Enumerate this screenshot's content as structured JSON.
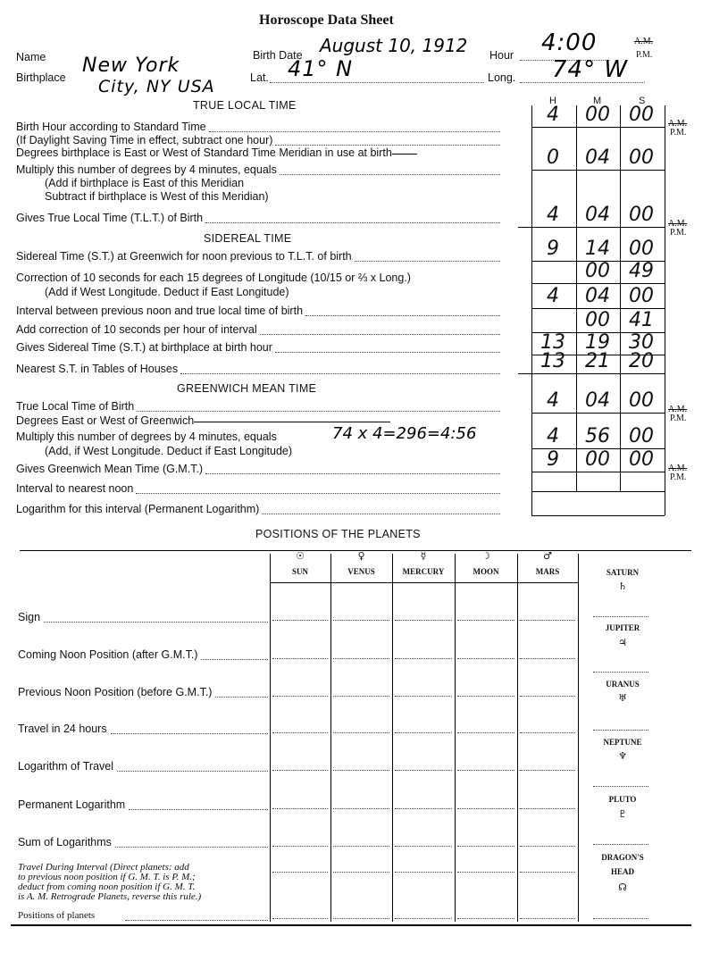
{
  "title": "Horoscope Data Sheet",
  "header": {
    "name_label": "Name",
    "name_value": "",
    "birth_date_label": "Birth Date",
    "birth_date_value": "August 10, 1912",
    "hour_label": "Hour",
    "hour_value": "4:00",
    "am": "A.M.",
    "pm": "P.M.",
    "birthplace_label": "Birthplace",
    "birthplace_line1": "New York",
    "birthplace_line2": "City, NY USA",
    "lat_label": "Lat.",
    "lat_value": "41° N",
    "long_label": "Long.",
    "long_value": "74° W"
  },
  "columns": [
    "H",
    "M",
    "S"
  ],
  "sections": {
    "true_local_time": "TRUE LOCAL TIME",
    "sidereal_time": "SIDEREAL TIME",
    "greenwich_mean_time": "GREENWICH MEAN TIME",
    "planets": "POSITIONS OF THE PLANETS"
  },
  "calc_lines": [
    "Birth Hour according to Standard Time",
    "(If Daylight Saving Time in effect, subtract one hour)",
    "Degrees birthplace is East or West of Standard Time Meridian in use at birth",
    "Multiply this number of degrees by 4 minutes, equals",
    "(Add if birthplace is East of this Meridian",
    "Subtract if birthplace is West of this Meridian)",
    "Gives True Local Time (T.L.T.) of Birth",
    "Sidereal Time (S.T.) at Greenwich for noon previous to T.L.T. of birth",
    "Correction of 10 seconds for each 15 degrees of Longitude (10/15 or ⅔ x Long.)",
    "(Add if West Longitude. Deduct if East Longitude)",
    "Interval between previous noon and true local time of birth",
    "Add correction of 10 seconds per hour of interval",
    "Gives Sidereal Time (S.T.) at birthplace at birth hour",
    "Nearest S.T. in Tables of Houses",
    "True Local Time of Birth",
    "Degrees East or West of Greenwich",
    "Multiply this number of degrees by 4 minutes,  equals",
    "(Add, if West Longitude. Deduct if East Longitude)",
    "Gives Greenwich Mean Time (G.M.T.)",
    "Interval to nearest noon",
    "Logarithm  for  this  interval  (Permanent Logarithm)"
  ],
  "gmt_note": "74 x 4=296=4:56",
  "grid_rows": [
    {
      "h": "4",
      "m": "00",
      "s": "00",
      "ampm": true
    },
    {
      "h": "0",
      "m": "04",
      "s": "00",
      "ampm": false
    },
    {
      "h": "4",
      "m": "04",
      "s": "00",
      "ampm": true
    },
    {
      "h": "9",
      "m": "14",
      "s": "00",
      "ampm": false
    },
    {
      "h": "",
      "m": "00",
      "s": "49",
      "ampm": false
    },
    {
      "h": "4",
      "m": "04",
      "s": "00",
      "ampm": false
    },
    {
      "h": "",
      "m": "00",
      "s": "41",
      "ampm": false
    },
    {
      "h": "13",
      "m": "19",
      "s": "30",
      "ampm": false
    },
    {
      "h": "13",
      "m": "21",
      "s": "20",
      "ampm": false
    },
    {
      "h": "4",
      "m": "04",
      "s": "00",
      "ampm": true
    },
    {
      "h": "4",
      "m": "56",
      "s": "00",
      "ampm": false
    },
    {
      "h": "9",
      "m": "00",
      "s": "00",
      "ampm": true
    },
    {
      "h": "",
      "m": "",
      "s": "",
      "ampm": false
    },
    {
      "h": "",
      "m": "",
      "s": "",
      "ampm": false
    }
  ],
  "planets": {
    "columns": [
      {
        "symbol": "☉",
        "name": "SUN"
      },
      {
        "symbol": "♀",
        "name": "VENUS"
      },
      {
        "symbol": "☿",
        "name": "MERCURY"
      },
      {
        "symbol": "☽",
        "name": "MOON"
      },
      {
        "symbol": "♂",
        "name": "MARS"
      }
    ],
    "side": [
      {
        "name": "SATURN",
        "symbol": "♄"
      },
      {
        "name": "JUPITER",
        "symbol": "♃"
      },
      {
        "name": "URANUS",
        "symbol": "♅"
      },
      {
        "name": "NEPTUNE",
        "symbol": "♆"
      },
      {
        "name": "PLUTO",
        "symbol": "♇"
      },
      {
        "name": "DRAGON'S HEAD",
        "symbol": "☊"
      }
    ],
    "rows": [
      "Sign",
      "Coming Noon Position (after G.M.T.)",
      "Previous Noon Position (before G.M.T.)",
      "Travel in 24 hours",
      "Logarithm of Travel",
      "Permanent Logarithm",
      "Sum of Logarithms"
    ],
    "travel_interval": [
      "Travel During Interval (Direct planets: add",
      "to previous noon position if G. M. T. is P. M.;",
      "deduct from coming noon position if G. M. T.",
      "is A. M. Retrograde Planets, reverse this rule.)"
    ],
    "positions_label": "Positions of planets"
  }
}
